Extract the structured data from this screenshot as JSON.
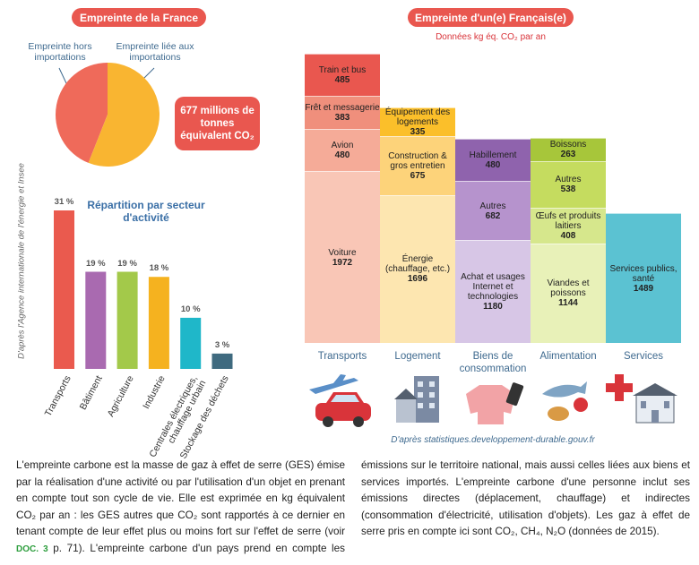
{
  "chart_data": [
    {
      "type": "pie",
      "title": "Empreinte de la France",
      "labels": [
        "Empreinte hors importations",
        "Empreinte liée aux importations"
      ],
      "values": [
        44,
        56
      ],
      "colors": [
        "#ef6a5a",
        "#f9b531"
      ],
      "annotation": "677 millions de tonnes équivalent CO₂"
    },
    {
      "type": "bar",
      "title": "Répartition par secteur d'activité",
      "categories": [
        "Transports",
        "Bâtiment",
        "Agriculture",
        "Industrie",
        "Centrales électriques, chauffage urbain",
        "Stockage des déchets"
      ],
      "values": [
        31,
        19,
        19,
        18,
        10,
        3
      ],
      "value_labels": [
        "31 %",
        "19 %",
        "19 %",
        "18 %",
        "10 %",
        "3 %"
      ],
      "colors": [
        "#ea5a4e",
        "#a96ab0",
        "#a3c94a",
        "#f5b21f",
        "#1fb7c9",
        "#3f6a7f"
      ],
      "source": "D'après l'Agence internationale de l'énergie et Insee"
    },
    {
      "type": "stacked",
      "title": "Empreinte d'un(e) Français(e)",
      "subtitle": "Données kg éq. CO₂ par an",
      "columns": [
        {
          "name": "Transports",
          "segments": [
            {
              "label": "Voiture",
              "value": 1972,
              "color": "#f9c6b6"
            },
            {
              "label": "Avion",
              "value": 480,
              "color": "#f5ab98"
            },
            {
              "label": "Frêt et messagerie",
              "value": 383,
              "color": "#f08f7c"
            },
            {
              "label": "Train et bus",
              "value": 485,
              "color": "#e9574f"
            }
          ]
        },
        {
          "name": "Logement",
          "segments": [
            {
              "label": "Énergie (chauffage, etc.)",
              "value": 1696,
              "color": "#fde6b0"
            },
            {
              "label": "Construction & gros entretien",
              "value": 675,
              "color": "#fdd37a"
            },
            {
              "label": "Équipement des logements",
              "value": 335,
              "color": "#fbbf2a"
            }
          ]
        },
        {
          "name": "Biens de consommation",
          "segments": [
            {
              "label": "Achat et usages Internet et technologies",
              "value": 1180,
              "color": "#d7c6e6"
            },
            {
              "label": "Autres",
              "value": 682,
              "color": "#b693cd"
            },
            {
              "label": "Habillement",
              "value": 480,
              "color": "#8f63ad"
            }
          ]
        },
        {
          "name": "Alimentation",
          "segments": [
            {
              "label": "Viandes et poissons",
              "value": 1144,
              "color": "#e8f1b8"
            },
            {
              "label": "Œufs et produits laitiers",
              "value": 408,
              "color": "#d6e78c"
            },
            {
              "label": "Autres",
              "value": 538,
              "color": "#c5dc5f"
            },
            {
              "label": "Boissons",
              "value": 263,
              "color": "#a7c63a"
            }
          ]
        },
        {
          "name": "Services",
          "segments": [
            {
              "label": "Services publics, santé",
              "value": 1489,
              "color": "#5bc2d2"
            }
          ]
        }
      ],
      "source": "D'après statistiques.developpement-durable.gouv.fr"
    }
  ],
  "text": {
    "before": "L'empreinte carbone est la masse de gaz à effet de serre (GES) émise par la réalisation d'une activité ou par l'utilisation d'un objet en prenant en compte tout son cycle de vie. Elle est exprimée en kg équivalent CO₂ par an : les GES autres que CO₂ sont rapportés à ce dernier en tenant compte de leur effet plus ou moins fort sur l'effet de serre (voir ",
    "ref": "DOC. 3",
    "after": " p. 71). L'empreinte carbone d'un pays prend en compte les émissions sur le territoire national, mais aussi celles liées aux biens et services importés. L'empreinte carbone d'une personne inclut ses émissions directes (déplacement, chauffage) et indirectes (consommation d'électricité, utilisation d'objets). Les gaz à effet de serre pris en compte ici sont CO₂, CH₄, N₂O (données de 2015)."
  }
}
